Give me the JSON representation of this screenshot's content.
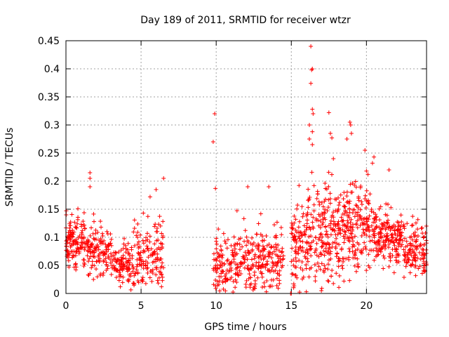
{
  "chart_data": {
    "type": "scatter",
    "title": "Day 189 of 2011, SRMTID for receiver wtzr",
    "xlabel": "GPS time / hours",
    "ylabel": "SRMTID / TECUs",
    "xlim": [
      0,
      24
    ],
    "ylim": [
      0,
      0.45
    ],
    "grid": true,
    "marker": "+",
    "color": "#ff0000",
    "xticks": [
      0,
      5,
      10,
      15,
      20
    ],
    "xtick_labels": [
      "0",
      "5",
      "10",
      "15",
      "20"
    ],
    "yticks": [
      0,
      0.05,
      0.1,
      0.15,
      0.2,
      0.25,
      0.3,
      0.35,
      0.4,
      0.45
    ],
    "ytick_labels": [
      "0",
      "0.05",
      "0.1",
      "0.15",
      "0.2",
      "0.25",
      "0.3",
      "0.35",
      "0.4",
      "0.45"
    ],
    "segments": [
      {
        "x_start": 0.0,
        "x_end": 1.5,
        "n": 140,
        "median": 0.09,
        "spread": 0.025
      },
      {
        "x_start": 1.5,
        "x_end": 3.0,
        "n": 110,
        "median": 0.075,
        "spread": 0.022
      },
      {
        "x_start": 3.0,
        "x_end": 4.5,
        "n": 110,
        "median": 0.055,
        "spread": 0.022
      },
      {
        "x_start": 4.5,
        "x_end": 6.5,
        "n": 140,
        "median": 0.07,
        "spread": 0.035
      },
      {
        "x_start": 9.8,
        "x_end": 11.5,
        "n": 120,
        "median": 0.055,
        "spread": 0.03
      },
      {
        "x_start": 11.5,
        "x_end": 14.5,
        "n": 210,
        "median": 0.06,
        "spread": 0.03
      },
      {
        "x_start": 15.0,
        "x_end": 16.0,
        "n": 90,
        "median": 0.08,
        "spread": 0.04
      },
      {
        "x_start": 16.0,
        "x_end": 18.5,
        "n": 230,
        "median": 0.105,
        "spread": 0.045
      },
      {
        "x_start": 18.5,
        "x_end": 20.5,
        "n": 180,
        "median": 0.12,
        "spread": 0.04
      },
      {
        "x_start": 20.5,
        "x_end": 22.5,
        "n": 180,
        "median": 0.1,
        "spread": 0.025
      },
      {
        "x_start": 22.5,
        "x_end": 24.0,
        "n": 120,
        "median": 0.075,
        "spread": 0.025
      }
    ],
    "notable_points": [
      {
        "x": 1.6,
        "y": 0.215
      },
      {
        "x": 1.6,
        "y": 0.205
      },
      {
        "x": 1.6,
        "y": 0.19
      },
      {
        "x": 5.6,
        "y": 0.172
      },
      {
        "x": 6.0,
        "y": 0.185
      },
      {
        "x": 6.5,
        "y": 0.205
      },
      {
        "x": 9.9,
        "y": 0.32
      },
      {
        "x": 9.8,
        "y": 0.27
      },
      {
        "x": 9.95,
        "y": 0.187
      },
      {
        "x": 12.1,
        "y": 0.19
      },
      {
        "x": 13.5,
        "y": 0.19
      },
      {
        "x": 16.3,
        "y": 0.44
      },
      {
        "x": 16.4,
        "y": 0.4
      },
      {
        "x": 16.35,
        "y": 0.398
      },
      {
        "x": 16.3,
        "y": 0.374
      },
      {
        "x": 16.4,
        "y": 0.328
      },
      {
        "x": 16.45,
        "y": 0.32
      },
      {
        "x": 16.2,
        "y": 0.3
      },
      {
        "x": 16.4,
        "y": 0.288
      },
      {
        "x": 16.2,
        "y": 0.275
      },
      {
        "x": 16.4,
        "y": 0.265
      },
      {
        "x": 17.5,
        "y": 0.322
      },
      {
        "x": 17.6,
        "y": 0.285
      },
      {
        "x": 17.7,
        "y": 0.277
      },
      {
        "x": 17.8,
        "y": 0.24
      },
      {
        "x": 18.9,
        "y": 0.305
      },
      {
        "x": 18.95,
        "y": 0.3
      },
      {
        "x": 19.0,
        "y": 0.285
      },
      {
        "x": 18.7,
        "y": 0.275
      },
      {
        "x": 19.9,
        "y": 0.255
      },
      {
        "x": 20.5,
        "y": 0.243
      },
      {
        "x": 20.4,
        "y": 0.232
      },
      {
        "x": 20.0,
        "y": 0.218
      },
      {
        "x": 20.1,
        "y": 0.212
      },
      {
        "x": 21.5,
        "y": 0.22
      },
      {
        "x": 15.0,
        "y": 0.0
      },
      {
        "x": 14.95,
        "y": 0.0
      },
      {
        "x": 16.0,
        "y": 0.003
      },
      {
        "x": 17.0,
        "y": 0.005
      },
      {
        "x": 18.5,
        "y": 0.022
      }
    ]
  }
}
